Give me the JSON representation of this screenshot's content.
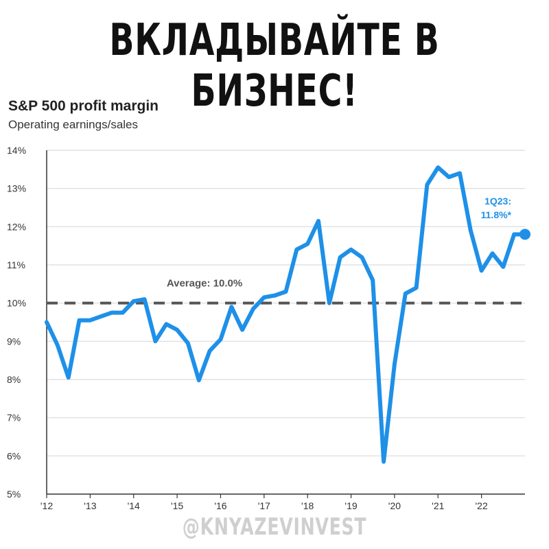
{
  "headline": "ВКЛАДЫВАЙТЕ В БИЗНЕС!",
  "watermark": "@KNYAZEVINVEST",
  "colors": {
    "line": "#1e90e8",
    "average": "#555555",
    "grid": "#d9d9d9",
    "axis": "#333333",
    "callout": "#1e90e8"
  },
  "chart_data": {
    "type": "line",
    "title": "S&P 500 profit margin",
    "subtitle": "Operating earnings/sales",
    "xlabel": "",
    "ylabel": "",
    "xlim": [
      2012.0,
      2023.0
    ],
    "ylim": [
      5,
      14
    ],
    "grid": "horizontal",
    "y_ticks": [
      "5%",
      "6%",
      "7%",
      "8%",
      "9%",
      "10%",
      "11%",
      "12%",
      "13%",
      "14%"
    ],
    "x_tick_labels": [
      "'12",
      "'13",
      "'14",
      "'15",
      "'16",
      "'17",
      "'18",
      "'19",
      "'20",
      "'21",
      "'22"
    ],
    "series": [
      {
        "x": [
          2012.0,
          2012.25,
          2012.5,
          2012.75,
          2013.0,
          2013.25,
          2013.5,
          2013.75,
          2014.0,
          2014.25,
          2014.5,
          2014.75,
          2015.0,
          2015.25,
          2015.5,
          2015.75,
          2016.0,
          2016.25,
          2016.5,
          2016.75,
          2017.0,
          2017.25,
          2017.5,
          2017.75,
          2018.0,
          2018.25,
          2018.5,
          2018.75,
          2019.0,
          2019.25,
          2019.5,
          2019.75,
          2020.0,
          2020.25,
          2020.5,
          2020.75,
          2021.0,
          2021.25,
          2021.5,
          2021.75,
          2022.0,
          2022.25,
          2022.5,
          2022.75,
          2023.0
        ],
        "y": [
          9.5,
          8.9,
          8.05,
          9.55,
          9.55,
          9.65,
          9.75,
          9.75,
          10.05,
          10.1,
          9.0,
          9.45,
          9.3,
          8.95,
          7.98,
          8.75,
          9.05,
          9.9,
          9.3,
          9.85,
          10.15,
          10.2,
          10.3,
          11.4,
          11.55,
          12.15,
          10.0,
          11.2,
          11.4,
          11.2,
          10.6,
          5.85,
          8.4,
          10.25,
          10.4,
          13.1,
          13.55,
          13.3,
          13.4,
          11.9,
          10.85,
          11.3,
          10.95,
          11.8,
          11.8
        ]
      }
    ],
    "reference_line": {
      "value": 10.0,
      "label": "Average: 10.0%"
    },
    "annotation": {
      "line1": "1Q23:",
      "line2": "11.8%*"
    }
  }
}
